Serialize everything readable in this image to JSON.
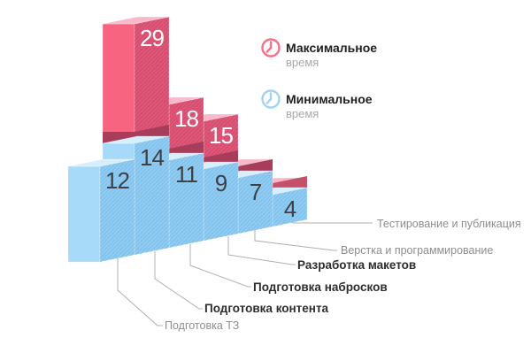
{
  "legend": {
    "max": {
      "label": "Максимальное",
      "sub": "время"
    },
    "min": {
      "label": "Минимальное",
      "sub": "время"
    }
  },
  "chart_data": {
    "type": "bar",
    "variant": "3d-pictorial-stepped",
    "title": "",
    "legend_position": "top-right",
    "categories": [
      "Подготовка ТЗ",
      "Подготовка контента",
      "Подготовка набросков",
      "Разработка макетов",
      "Верстка и программирование",
      "Тестирование и публикация"
    ],
    "series": [
      {
        "name": "Максимальное время",
        "role": "max",
        "values": [
          29,
          18,
          15,
          null,
          null,
          null
        ]
      },
      {
        "name": "Минимальное время",
        "role": "min",
        "values": [
          12,
          14,
          11,
          9,
          7,
          4
        ]
      }
    ],
    "colors": {
      "min_front": "#a7d9f8",
      "min_side": "#8fccf3",
      "min_top": "#d7effc",
      "min_hatch": "#7ab8e3",
      "max_front": "#f7647f",
      "max_side": "#e05678",
      "max_top": "#f9b9ca",
      "max_hatch": "#cc4a6c",
      "shadow_band": "#a83d5b",
      "shadow_band_light": "#c5506b",
      "value_min_text": "#3e4046",
      "value_max_text": "#ffffff",
      "leader_line": "#b0b0b0",
      "legend_max_icon": "#f76f88",
      "legend_min_icon": "#a5d2f0"
    }
  }
}
